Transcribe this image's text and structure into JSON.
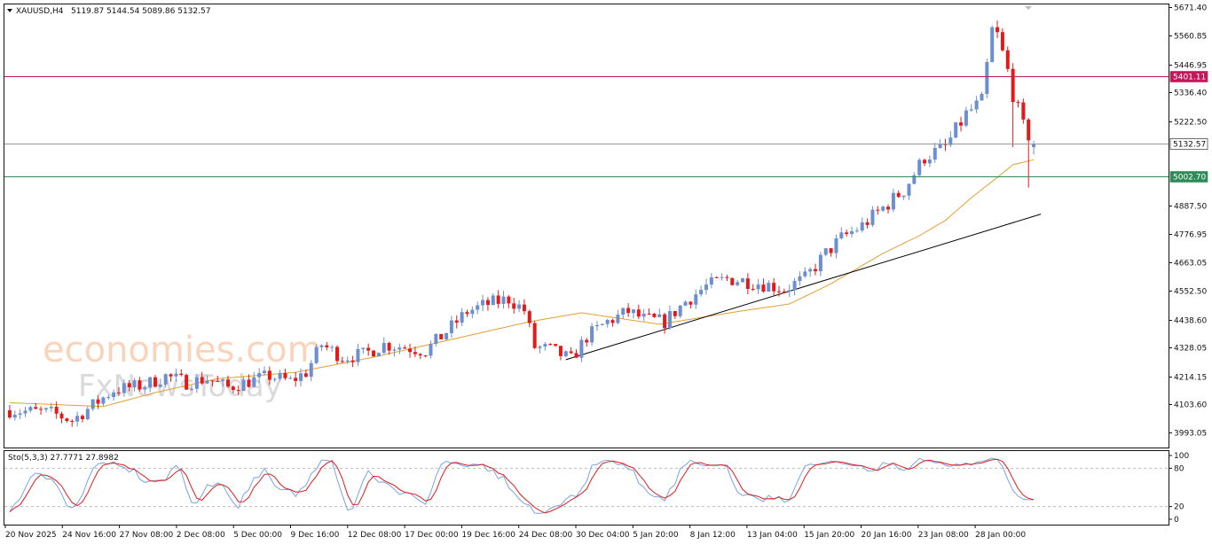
{
  "header": {
    "symbol": "XAUUSD,H4",
    "ohlc": "5119.87 5144.54 5089.86 5132.57"
  },
  "watermark": {
    "line1": "economies.com",
    "line2": "FxNewsToday"
  },
  "colors": {
    "bull": "#6b8fd0",
    "bear": "#e21a1a",
    "ma": "#e3a032",
    "resistance": "#c2185b",
    "support": "#2e8b57",
    "current": "#999999",
    "trend": "#000000",
    "stoch_main": "#7aa2e6",
    "stoch_signal": "#e21a1a"
  },
  "chart_data": [
    {
      "type": "candlestick",
      "title": "XAUUSD,H4",
      "ylim": [
        3940,
        5680
      ],
      "y_ticks": [
        "5671.40",
        "5560.85",
        "5446.95",
        "5336.40",
        "5222.50",
        "5111.95",
        "4998.05",
        "4887.50",
        "4776.95",
        "4663.05",
        "4552.50",
        "4438.60",
        "4328.05",
        "4214.15",
        "4103.60",
        "3993.05"
      ],
      "x_labels": [
        "20 Nov 2025",
        "24 Nov 16:00",
        "27 Nov 08:00",
        "2 Dec 08:00",
        "5 Dec 00:00",
        "9 Dec 16:00",
        "12 Dec 08:00",
        "17 Dec 00:00",
        "19 Dec 16:00",
        "24 Dec 08:00",
        "30 Dec 04:00",
        "5 Jan 20:00",
        "8 Jan 12:00",
        "13 Jan 04:00",
        "15 Jan 20:00",
        "20 Jan 16:00",
        "23 Jan 08:00",
        "28 Jan 00:00"
      ],
      "price_path": [
        [
          0,
          4080
        ],
        [
          8,
          4070
        ],
        [
          12,
          4040
        ],
        [
          16,
          4100
        ],
        [
          20,
          4160
        ],
        [
          26,
          4180
        ],
        [
          30,
          4215
        ],
        [
          34,
          4190
        ],
        [
          38,
          4205
        ],
        [
          42,
          4170
        ],
        [
          46,
          4195
        ],
        [
          50,
          4215
        ],
        [
          54,
          4195
        ],
        [
          57,
          4230
        ],
        [
          60,
          4340
        ],
        [
          64,
          4290
        ],
        [
          68,
          4300
        ],
        [
          72,
          4340
        ],
        [
          76,
          4330
        ],
        [
          80,
          4315
        ],
        [
          84,
          4390
        ],
        [
          88,
          4470
        ],
        [
          92,
          4500
        ],
        [
          96,
          4520
        ],
        [
          99,
          4475
        ],
        [
          101,
          4330
        ],
        [
          104,
          4320
        ],
        [
          108,
          4280
        ],
        [
          111,
          4370
        ],
        [
          115,
          4430
        ],
        [
          119,
          4470
        ],
        [
          122,
          4440
        ],
        [
          126,
          4430
        ],
        [
          130,
          4510
        ],
        [
          134,
          4570
        ],
        [
          138,
          4600
        ],
        [
          142,
          4590
        ],
        [
          146,
          4575
        ],
        [
          149,
          4560
        ],
        [
          153,
          4600
        ],
        [
          157,
          4700
        ],
        [
          160,
          4760
        ],
        [
          164,
          4810
        ],
        [
          168,
          4880
        ],
        [
          172,
          4950
        ],
        [
          176,
          5080
        ],
        [
          180,
          5120
        ],
        [
          184,
          5250
        ],
        [
          187,
          5300
        ],
        [
          189,
          5580
        ],
        [
          190,
          5560
        ],
        [
          192,
          5420
        ],
        [
          193,
          5330
        ],
        [
          195,
          5200
        ],
        [
          197,
          5132.57
        ]
      ],
      "candle_count": 198,
      "ma_path": [
        [
          0,
          4110
        ],
        [
          18,
          4095
        ],
        [
          28,
          4150
        ],
        [
          40,
          4205
        ],
        [
          55,
          4230
        ],
        [
          70,
          4290
        ],
        [
          85,
          4360
        ],
        [
          100,
          4430
        ],
        [
          110,
          4465
        ],
        [
          125,
          4420
        ],
        [
          140,
          4470
        ],
        [
          150,
          4500
        ],
        [
          158,
          4580
        ],
        [
          168,
          4700
        ],
        [
          175,
          4770
        ],
        [
          180,
          4830
        ],
        [
          185,
          4920
        ],
        [
          190,
          5000
        ],
        [
          193,
          5050
        ],
        [
          197,
          5070
        ]
      ],
      "trendline": {
        "x": [
          107,
          197
        ],
        "y": [
          4280,
          4855
        ]
      },
      "horizontal_lines": [
        {
          "value": 5401.11,
          "label": "5401.11",
          "role": "resistance"
        },
        {
          "value": 5132.57,
          "label": "5132.57",
          "role": "current"
        },
        {
          "value": 5002.7,
          "label": "5002.70",
          "role": "support"
        }
      ]
    },
    {
      "type": "line",
      "title": "Sto(5,3,3) 27.7771 27.8982",
      "ylim": [
        0,
        100
      ],
      "y_ticks": [
        "100",
        "80",
        "20",
        "0"
      ],
      "levels": [
        80,
        20
      ]
    }
  ]
}
